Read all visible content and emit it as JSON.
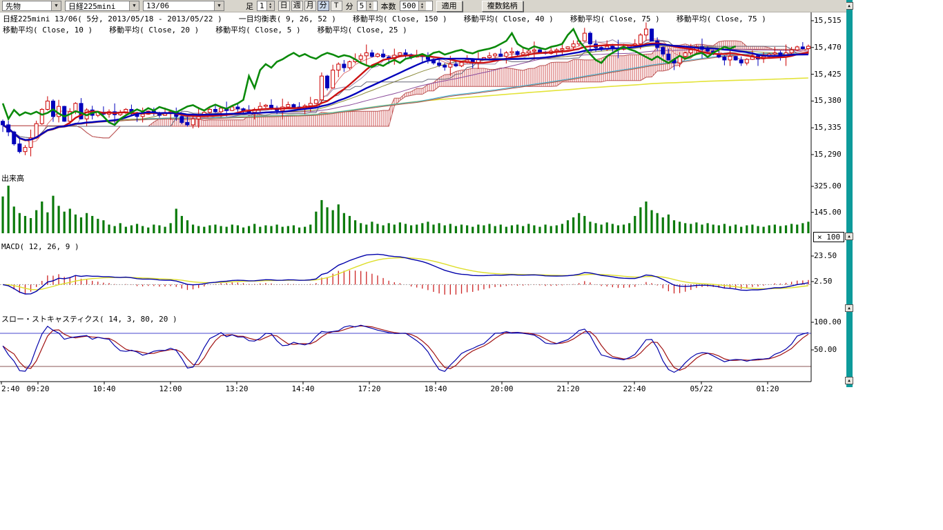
{
  "toolbar": {
    "instrument_type": "先物",
    "instrument": "日経225mini",
    "contract": "13/06",
    "period_label": "足",
    "period_value": "1",
    "period_buttons": [
      "日",
      "週",
      "月",
      "分",
      "T"
    ],
    "active_period": "分",
    "minute_label": "分",
    "minute_value": "5",
    "bars_label": "本数",
    "bars_value": "500",
    "apply_label": "適用",
    "multi_symbol_label": "複数銘柄"
  },
  "legend": {
    "row1": [
      "日経225mini 13/06( 5分, 2013/05/18 - 2013/05/22 )",
      "一目均衡表( 9, 26, 52 )",
      "移動平均( Close, 150 )",
      "移動平均( Close, 40 )",
      "移動平均( Close, 75 )",
      "移動平均( Close, 75 )"
    ],
    "row2": [
      "移動平均( Close, 10 )",
      "移動平均( Close, 20 )",
      "移動平均( Close, 5 )",
      "移動平均( Close, 25 )"
    ]
  },
  "panels": {
    "volume_title": "出来高",
    "macd_title": "MACD( 12, 26, 9 )",
    "stoch_title": "スロー・ストキャスティクス( 14, 3, 80, 20 )",
    "multiplier_badge": "× 100"
  },
  "axes": {
    "price": {
      "labels": [
        "15,515",
        "15,470",
        "15,425",
        "15,380",
        "15,335",
        "15,290"
      ],
      "values": [
        15515,
        15470,
        15425,
        15380,
        15335,
        15290
      ]
    },
    "volume": {
      "labels": [
        "325.00",
        "145.00"
      ],
      "values": [
        325,
        145
      ]
    },
    "macd": {
      "labels": [
        "23.50",
        "2.50"
      ],
      "values": [
        23.5,
        2.5
      ]
    },
    "stoch": {
      "labels": [
        "100.00",
        "50.00"
      ],
      "values": [
        100,
        50
      ]
    },
    "time": {
      "labels": [
        "2:40",
        "09:20",
        "10:40",
        "12:00",
        "13:20",
        "14:40",
        "17:20",
        "18:40",
        "20:00",
        "21:20",
        "22:40",
        "05/22",
        "01:20"
      ],
      "x": [
        2,
        55,
        151,
        247,
        343,
        439,
        535,
        631,
        727,
        823,
        919,
        1016,
        1112
      ]
    }
  },
  "chart_data": {
    "type": "candlestick+indicators",
    "instrument": "日経225mini 13/06",
    "interval": "5分",
    "date_range": "2013/05/18 - 2013/05/22",
    "price_range": [
      15290,
      15515
    ],
    "indicators": {
      "ichimoku": [
        9,
        26,
        52
      ],
      "moving_averages": [
        5,
        10,
        20,
        25,
        40,
        75,
        150
      ],
      "macd": [
        12,
        26,
        9
      ],
      "slow_stochastics": [
        14,
        3,
        80,
        20
      ],
      "volume_multiplier": 100
    },
    "closes": [
      15340,
      15328,
      15308,
      15295,
      15302,
      15318,
      15342,
      15366,
      15380,
      15354,
      15371,
      15346,
      15362,
      15376,
      15350,
      15365,
      15356,
      15361,
      15358,
      15362,
      15357,
      15360,
      15366,
      15359,
      15354,
      15358,
      15363,
      15360,
      15356,
      15360,
      15362,
      15354,
      15344,
      15340,
      15350,
      15356,
      15361,
      15366,
      15362,
      15368,
      15364,
      15370,
      15367,
      15364,
      15361,
      15366,
      15371,
      15373,
      15368,
      15364,
      15370,
      15374,
      15370,
      15367,
      15372,
      15376,
      15382,
      15422,
      15402,
      15432,
      15442,
      15436,
      15446,
      15450,
      15456,
      15461,
      15455,
      15459,
      15454,
      15451,
      15457,
      15461,
      15458,
      15454,
      15457,
      15455,
      15450,
      15444,
      15440,
      15437,
      15442,
      15439,
      15445,
      15449,
      15444,
      15451,
      15453,
      15456,
      15459,
      15455,
      15461,
      15463,
      15458,
      15461,
      15464,
      15466,
      15462,
      15460,
      15464,
      15466,
      15468,
      15471,
      15476,
      15481,
      15494,
      15476,
      15470,
      15467,
      15472,
      15469,
      15467,
      15471,
      15473,
      15476,
      15491,
      15501,
      15481,
      15470,
      15459,
      15449,
      15444,
      15455,
      15461,
      15466,
      15471,
      15467,
      15464,
      15459,
      15454,
      15449,
      15455,
      15449,
      15444,
      15450,
      15456,
      15451,
      15455,
      15459,
      15461,
      15454,
      15461,
      15466,
      15471,
      15468,
      15472
    ],
    "volumes": [
      255,
      330,
      185,
      140,
      120,
      105,
      160,
      220,
      145,
      260,
      190,
      150,
      170,
      130,
      110,
      140,
      120,
      100,
      90,
      60,
      50,
      70,
      45,
      55,
      65,
      50,
      40,
      60,
      55,
      45,
      70,
      170,
      120,
      90,
      60,
      50,
      45,
      55,
      60,
      50,
      45,
      60,
      55,
      40,
      50,
      65,
      45,
      55,
      50,
      60,
      45,
      50,
      55,
      40,
      45,
      60,
      150,
      230,
      180,
      160,
      200,
      140,
      120,
      90,
      70,
      60,
      80,
      65,
      55,
      70,
      60,
      75,
      65,
      55,
      60,
      70,
      80,
      60,
      70,
      55,
      65,
      50,
      60,
      55,
      45,
      60,
      55,
      65,
      50,
      60,
      45,
      55,
      60,
      50,
      65,
      55,
      45,
      60,
      50,
      55,
      65,
      90,
      110,
      140,
      120,
      80,
      70,
      60,
      75,
      65,
      55,
      60,
      70,
      120,
      180,
      220,
      160,
      140,
      110,
      130,
      90,
      80,
      70,
      65,
      75,
      60,
      70,
      60,
      55,
      65,
      50,
      60,
      45,
      55,
      60,
      50,
      45,
      55,
      60,
      50,
      55,
      65,
      60,
      70,
      80
    ],
    "wick_hi": [
      3,
      7,
      2,
      10,
      4,
      14,
      5,
      2,
      8,
      3,
      11,
      1,
      6,
      2,
      9
    ],
    "wick_lo": [
      2,
      6,
      3,
      12,
      4,
      1,
      9,
      2,
      15,
      3,
      7,
      1,
      5,
      10,
      2
    ]
  },
  "colors": {
    "up_candle": "#cc0000",
    "down_candle": "#0000bb",
    "lagging_span": "#0a8a0a",
    "cloud_hatch": "#cc4444",
    "cloud_edge": "#bb5555",
    "ma150": "#e3e338",
    "ma40": "#8a4a9a",
    "ma75a": "#33aacc",
    "ma75b": "#aa5544",
    "ma25": "#8a8a3a",
    "ma5": "#dd7777",
    "ma10_thick": "#cc1111",
    "ma20_thick": "#0000bb",
    "tenkan": "#9988aa",
    "kijun": "#666677",
    "volume_bar": "#0a7a0a",
    "macd_line": "#0000aa",
    "macd_signal": "#dede2a",
    "macd_hist": "#cc2222",
    "stoch_k": "#0000aa",
    "stoch_d": "#a01010",
    "stoch_upper_line": "#4444cc",
    "stoch_lower_line": "#885555",
    "axis": "#000000",
    "edge_strip": "#0d9b9b"
  }
}
